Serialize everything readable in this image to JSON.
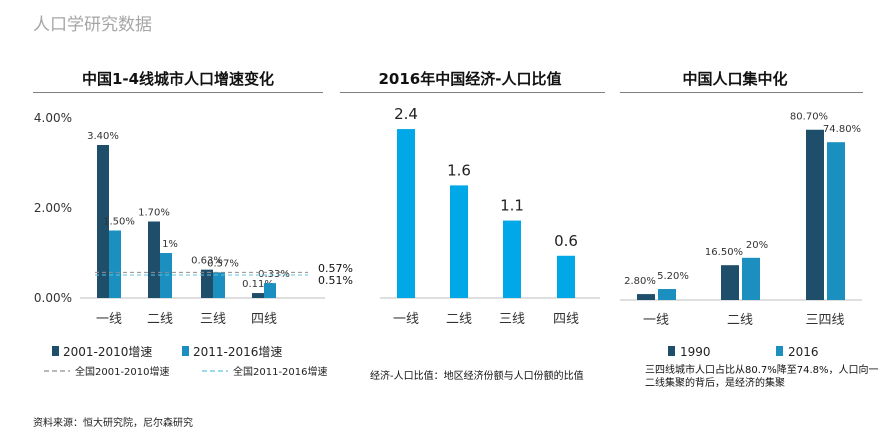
{
  "page_title": "人口学研究数据",
  "source": "资料来源：恒大研究院，尼尔森研究",
  "colors": {
    "dark": "#1f4e6b",
    "mid": "#1a8fc0",
    "bright": "#00a8e8",
    "refline": "#8aaab8"
  },
  "chart_data": [
    {
      "type": "bar",
      "title": "中国1-4线城市人口增速变化",
      "categories": [
        "一线",
        "二线",
        "三线",
        "四线"
      ],
      "ylim": [
        0,
        4
      ],
      "yticks": [
        "0.00%",
        "2.00%",
        "4.00%"
      ],
      "series": [
        {
          "name": "2001-2010增速",
          "values": [
            3.4,
            1.7,
            0.63,
            0.11
          ],
          "labels": [
            "3.40%",
            "1.70%",
            "0.63%",
            "0.11%"
          ]
        },
        {
          "name": "2011-2016增速",
          "values": [
            1.5,
            1.0,
            0.57,
            0.33
          ],
          "labels": [
            "1.50%",
            "1%",
            "0.57%",
            "0.33%"
          ]
        }
      ],
      "reference_lines": [
        {
          "name": "全国2001-2010增速",
          "value": 0.57,
          "label": "0.57%"
        },
        {
          "name": "全国2011-2016增速",
          "value": 0.51,
          "label": "0.51%"
        }
      ],
      "legend_position": "bottom"
    },
    {
      "type": "bar",
      "title": "2016年中国经济-人口比值",
      "categories": [
        "一线",
        "二线",
        "三线",
        "四线"
      ],
      "ylim": [
        0,
        2.6
      ],
      "series": [
        {
          "values": [
            2.4,
            1.6,
            1.1,
            0.6
          ],
          "labels": [
            "2.4",
            "1.6",
            "1.1",
            "0.6"
          ]
        }
      ],
      "note": "经济-人口比值：地区经济份额与人口份额的比值"
    },
    {
      "type": "bar",
      "title": "中国人口集中化",
      "categories": [
        "一线",
        "二线",
        "三四线"
      ],
      "ylim": [
        0,
        82
      ],
      "series": [
        {
          "name": "1990",
          "values": [
            2.8,
            16.5,
            80.7
          ],
          "labels": [
            "2.80%",
            "16.50%",
            "80.70%"
          ]
        },
        {
          "name": "2016",
          "values": [
            5.2,
            20,
            74.8
          ],
          "labels": [
            "5.20%",
            "20%",
            "74.80%"
          ]
        }
      ],
      "legend_position": "bottom",
      "note": "三四线城市人口占比从80.7%降至74.8%，人口向一二线集聚的背后，是经济的集聚"
    }
  ]
}
